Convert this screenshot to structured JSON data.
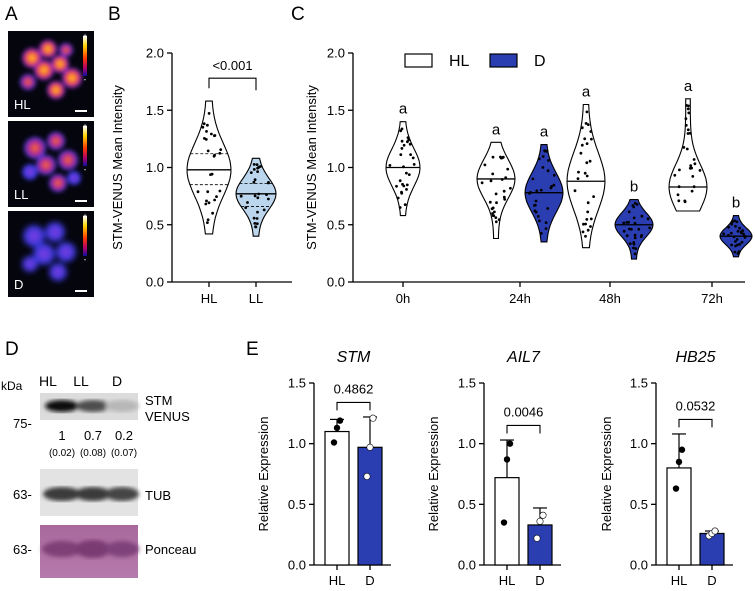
{
  "panel_labels": {
    "a": "A",
    "b": "B",
    "c": "C",
    "d": "D",
    "e": "E"
  },
  "panel_a": {
    "labels": [
      "HL",
      "LL",
      "D"
    ],
    "scale_plus": "+",
    "scale_minus": "-"
  },
  "colors": {
    "light_fill": "#ffffff",
    "dark_fill": "#2a3eb1",
    "ll_fill": "#bcd6ee",
    "axis": "#000000"
  },
  "chart_data": [
    {
      "id": "B",
      "type": "violin",
      "ylabel": "STM-VENUS Mean Intensity",
      "ylim": [
        0,
        2.0
      ],
      "yticks": [
        "0.0",
        "0.5",
        "1.0",
        "1.5",
        "2.0"
      ],
      "categories": [
        "HL",
        "LL"
      ],
      "medians": [
        0.98,
        0.77
      ],
      "quartiles": [
        [
          0.85,
          1.12
        ],
        [
          0.66,
          0.86
        ]
      ],
      "ranges": [
        [
          0.42,
          1.58
        ],
        [
          0.4,
          1.08
        ]
      ],
      "comparison": "<0.001"
    },
    {
      "id": "C",
      "type": "violin",
      "ylabel": "STM-VENUS Mean Intensity",
      "ylim": [
        0,
        2.0
      ],
      "yticks": [
        "0.0",
        "0.5",
        "1.0",
        "1.5",
        "2.0"
      ],
      "categories": [
        "0h",
        "24h",
        "48h",
        "72h"
      ],
      "legend": [
        "HL",
        "D"
      ],
      "series": [
        {
          "name": "HL",
          "medians": [
            1.0,
            0.9,
            0.88,
            0.83
          ],
          "ranges": [
            [
              0.58,
              1.4
            ],
            [
              0.38,
              1.22
            ],
            [
              0.3,
              1.55
            ],
            [
              0.62,
              1.6
            ]
          ],
          "letters": [
            "a",
            "a",
            "a",
            "a"
          ]
        },
        {
          "name": "D",
          "medians": [
            null,
            0.78,
            0.5,
            0.4
          ],
          "ranges": [
            null,
            [
              0.35,
              1.2
            ],
            [
              0.2,
              0.72
            ],
            [
              0.22,
              0.58
            ]
          ],
          "letters": [
            null,
            "a",
            "b",
            "b"
          ]
        }
      ]
    },
    {
      "id": "E1",
      "type": "bar",
      "title": "STM",
      "ylabel": "Relative Expression",
      "ylim": [
        0,
        1.5
      ],
      "yticks": [
        "0.0",
        "0.5",
        "1.0",
        "1.5"
      ],
      "categories": [
        "HL",
        "D"
      ],
      "values": [
        1.1,
        0.97
      ],
      "errors": [
        0.1,
        0.25
      ],
      "points": [
        [
          1.01,
          1.13,
          1.19
        ],
        [
          0.73,
          0.97,
          1.21
        ]
      ],
      "pvalue": "0.4862"
    },
    {
      "id": "E2",
      "type": "bar",
      "title": "AIL7",
      "ylabel": "Relative Expression",
      "ylim": [
        0,
        1.5
      ],
      "yticks": [
        "0.0",
        "0.5",
        "1.0",
        "1.5"
      ],
      "categories": [
        "HL",
        "D"
      ],
      "values": [
        0.72,
        0.33
      ],
      "errors": [
        0.31,
        0.14
      ],
      "points": [
        [
          0.35,
          0.87,
          1.0
        ],
        [
          0.22,
          0.36,
          0.41
        ]
      ],
      "pvalue": "0.0046"
    },
    {
      "id": "E3",
      "type": "bar",
      "title": "HB25",
      "ylabel": "Relative Expression",
      "ylim": [
        0,
        1.5
      ],
      "yticks": [
        "0.0",
        "0.5",
        "1.0",
        "1.5"
      ],
      "categories": [
        "HL",
        "D"
      ],
      "values": [
        0.8,
        0.26
      ],
      "errors": [
        0.28,
        0.02
      ],
      "points": [
        [
          0.63,
          0.85,
          0.95
        ],
        [
          0.24,
          0.26,
          0.28
        ]
      ],
      "pvalue": "0.0532"
    }
  ],
  "panel_d": {
    "columns": [
      "HL",
      "LL",
      "D"
    ],
    "kda": "kDa",
    "mw_top": "75-",
    "mw_mid": "63-",
    "mw_bottom": "63-",
    "band_label_line1": "STM",
    "band_label_line2": "VENUS",
    "quant": [
      "1",
      "0.7",
      "0.2"
    ],
    "quant_sd": [
      "(0.02)",
      "(0.08)",
      "(0.07)"
    ],
    "tub_label": "TUB",
    "ponceau_label": "Ponceau",
    "band_intensity": [
      1.0,
      0.7,
      0.2
    ]
  }
}
